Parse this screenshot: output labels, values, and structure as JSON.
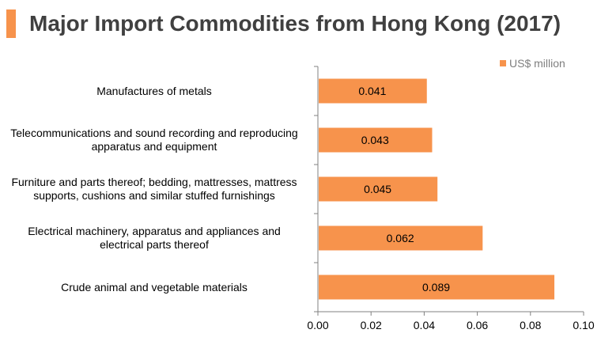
{
  "title": "Major Import Commodities from Hong Kong (2017)",
  "colors": {
    "bar": "#f7934c",
    "accent": "#f7934c",
    "axis": "#808080"
  },
  "chart_data": {
    "type": "bar",
    "orientation": "horizontal",
    "title": "Major Import Commodities from Hong Kong (2017)",
    "xlabel": "",
    "ylabel": "",
    "categories": [
      "Manufactures of metals",
      "Telecommunications and sound recording and reproducing apparatus and equipment",
      "Furniture and parts thereof; bedding, mattresses, mattress supports, cushions and similar stuffed furnishings",
      "Electrical machinery, apparatus and appliances and electrical parts thereof",
      "Crude animal and vegetable materials"
    ],
    "category_lines": [
      [
        "Manufactures of metals"
      ],
      [
        "Telecommunications and sound recording and reproducing",
        "apparatus and equipment"
      ],
      [
        "Furniture and parts thereof; bedding, mattresses, mattress",
        "supports, cushions and similar stuffed furnishings"
      ],
      [
        "Electrical machinery, apparatus and appliances and",
        "electrical parts thereof"
      ],
      [
        "Crude animal and vegetable materials"
      ]
    ],
    "series": [
      {
        "name": "US$ million",
        "values": [
          0.041,
          0.043,
          0.045,
          0.062,
          0.089
        ]
      }
    ],
    "data_labels": [
      "0.041",
      "0.043",
      "0.045",
      "0.062",
      "0.089"
    ],
    "xlim": [
      0,
      0.1
    ],
    "xticks": [
      0,
      0.02,
      0.04,
      0.06,
      0.08,
      0.1
    ],
    "xtick_labels": [
      "0.00",
      "0.02",
      "0.04",
      "0.06",
      "0.08",
      "0.10"
    ],
    "grid": false,
    "legend": "top-right"
  }
}
